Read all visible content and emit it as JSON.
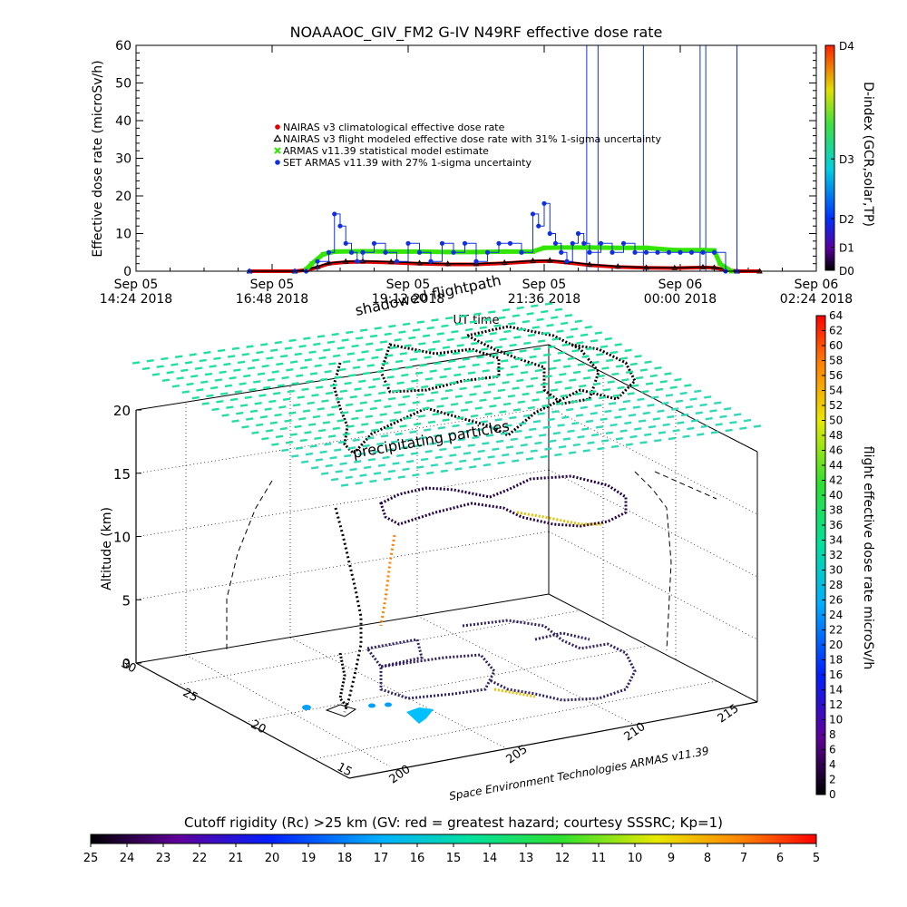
{
  "title": "NOAAAOC_GIV_FM2  G-IV    N49RF   effective dose rate",
  "colors": {
    "nairas_clim": "#e00000",
    "nairas_flight": "#000000",
    "armas_model": "#33e600",
    "set_armas": "#1030e0",
    "frame": "#000000",
    "particles": "#20e0b0"
  },
  "chart_data": [
    {
      "type": "line",
      "title": "NOAAAOC_GIV_FM2  G-IV    N49RF   effective dose rate",
      "xlabel": "UT time",
      "ylabel": "Effective dose rate (microSv/h)",
      "ylim": [
        0,
        60
      ],
      "yticks": [
        0,
        10,
        20,
        30,
        40,
        50,
        60
      ],
      "xlim": [
        0,
        12
      ],
      "xticks": [
        {
          "x": 0,
          "line1": "Sep 05",
          "line2": "14:24 2018"
        },
        {
          "x": 2.4,
          "line1": "Sep 05",
          "line2": "16:48 2018"
        },
        {
          "x": 4.8,
          "line1": "Sep 05",
          "line2": "19:12 2018"
        },
        {
          "x": 7.2,
          "line1": "Sep 05",
          "line2": "21:36 2018"
        },
        {
          "x": 9.6,
          "line1": "Sep 06",
          "line2": "00:00 2018"
        },
        {
          "x": 12.0,
          "line1": "Sep 06",
          "line2": "02:24 2018"
        }
      ],
      "legend": [
        {
          "symbol": "circle",
          "color": "#e00000",
          "label": "NAIRAS v3 climatological effective dose rate"
        },
        {
          "symbol": "triangle",
          "color": "#000000",
          "label": "NAIRAS v3 flight modeled effective dose rate with 31% 1-sigma uncertainty"
        },
        {
          "symbol": "x",
          "color": "#33e600",
          "label": "ARMAS v11.39 statistical model estimate"
        },
        {
          "symbol": "circle",
          "color": "#1030e0",
          "label": "SET ARMAS v11.39 with 27% 1-sigma uncertainty"
        }
      ],
      "legend_position": "upper-left",
      "series": [
        {
          "name": "NAIRAS v3 climatological effective dose rate",
          "x": [
            2.0,
            2.8,
            3.0,
            3.2,
            3.4,
            3.7,
            4.0,
            4.5,
            5.0,
            5.5,
            6.0,
            6.5,
            7.0,
            7.3,
            7.6,
            8.0,
            8.5,
            9.0,
            9.5,
            10.0,
            10.2,
            10.4,
            10.6,
            11.0
          ],
          "y": [
            0,
            0,
            0.3,
            1.0,
            2.0,
            2.4,
            2.5,
            2.3,
            2.0,
            1.8,
            1.8,
            2.1,
            2.6,
            2.7,
            2.3,
            1.6,
            1.1,
            0.9,
            0.8,
            1.0,
            0.9,
            0.4,
            0,
            0
          ]
        },
        {
          "name": "NAIRAS v3 flight modeled effective dose rate with 31% 1-sigma uncertainty",
          "x": [
            2.0,
            2.8,
            3.0,
            3.2,
            3.4,
            3.7,
            4.0,
            4.5,
            5.0,
            5.5,
            6.0,
            6.5,
            7.0,
            7.3,
            7.6,
            8.0,
            8.5,
            9.0,
            9.5,
            10.0,
            10.2,
            10.4,
            10.6,
            11.0
          ],
          "y": [
            0,
            0,
            0.4,
            1.2,
            2.2,
            2.6,
            2.7,
            2.5,
            2.2,
            2.0,
            2.0,
            2.3,
            2.8,
            2.9,
            2.5,
            1.8,
            1.3,
            1.0,
            0.9,
            1.1,
            1.0,
            0.5,
            0,
            0
          ]
        },
        {
          "name": "ARMAS v11.39 statistical model estimate",
          "x": [
            3.0,
            3.1,
            3.3,
            3.5,
            4.0,
            4.5,
            5.0,
            5.5,
            6.0,
            6.5,
            7.0,
            7.2,
            7.5,
            8.0,
            8.5,
            9.0,
            9.5,
            10.0,
            10.2,
            10.3,
            10.5
          ],
          "y": [
            0.5,
            2.0,
            4.5,
            5.2,
            5.3,
            5.2,
            5.2,
            5.1,
            5.1,
            5.2,
            5.2,
            6.2,
            6.3,
            6.3,
            6.2,
            6.2,
            5.6,
            5.6,
            5.5,
            2.0,
            0
          ]
        },
        {
          "name": "SET ARMAS v11.39 with 27% 1-sigma uncertainty",
          "x": [
            2.0,
            2.8,
            3.0,
            3.2,
            3.4,
            3.5,
            3.6,
            3.7,
            3.8,
            3.9,
            4.0,
            4.2,
            4.4,
            4.6,
            4.8,
            5.0,
            5.2,
            5.4,
            5.6,
            5.8,
            6.0,
            6.2,
            6.4,
            6.6,
            6.8,
            7.0,
            7.1,
            7.2,
            7.3,
            7.4,
            7.5,
            7.6,
            7.7,
            7.8,
            7.9,
            8.0,
            8.2,
            8.4,
            8.6,
            8.8,
            9.0,
            9.2,
            9.4,
            9.6,
            9.8,
            10.0,
            10.2,
            10.4,
            10.6
          ],
          "y": [
            0,
            0,
            0,
            2.6,
            5.0,
            15.2,
            12.0,
            7.4,
            5.0,
            2.6,
            5.0,
            7.4,
            5.0,
            2.6,
            7.4,
            5.0,
            2.6,
            7.4,
            5.0,
            7.4,
            2.6,
            5.0,
            7.4,
            7.4,
            5.0,
            15.2,
            12.0,
            18.0,
            10.0,
            7.4,
            5.0,
            2.6,
            7.4,
            10.0,
            7.4,
            5.0,
            7.4,
            5.0,
            7.4,
            5.0,
            5.0,
            5.0,
            5.0,
            5.0,
            5.0,
            5.0,
            5.0,
            0,
            0
          ]
        }
      ],
      "spikes_x": [
        7.95,
        8.15,
        8.95,
        9.95,
        10.05,
        10.6
      ]
    },
    {
      "type": "scatter",
      "title": "",
      "zlabel": "Altitude (km)",
      "zlim": [
        0,
        20
      ],
      "zticks": [
        0,
        5,
        10,
        15,
        20
      ],
      "xticks": [
        "15",
        "20",
        "25",
        "30"
      ],
      "yticks": [
        "200",
        "205",
        "210",
        "215"
      ],
      "annotations": [
        "shadowed flightpath",
        "precipitating particles"
      ],
      "credit": "Space Environment Technologies ARMAS v11.39"
    }
  ],
  "dindex_colorbar": {
    "title": "D-index (GCR,solar,TP)",
    "labels": [
      {
        "text": "D4",
        "frac": 1.0
      },
      {
        "text": "D3",
        "frac": 0.495
      },
      {
        "text": "D2",
        "frac": 0.23
      },
      {
        "text": "D1",
        "frac": 0.103
      },
      {
        "text": "D0",
        "frac": 0.0
      }
    ]
  },
  "dose_colorbar": {
    "title": "flight effective dose rate microSv/h",
    "min": 0,
    "max": 64,
    "ticks": [
      "0",
      "2",
      "4",
      "6",
      "8",
      "10",
      "12",
      "14",
      "16",
      "18",
      "20",
      "22",
      "24",
      "26",
      "28",
      "30",
      "32",
      "34",
      "36",
      "38",
      "40",
      "42",
      "44",
      "46",
      "48",
      "50",
      "52",
      "54",
      "56",
      "58",
      "60",
      "62",
      "64"
    ]
  },
  "rc_colorbar": {
    "title": "Cutoff rigidity (Rc) >25 km (GV: red = greatest hazard; courtesy SSSRC; Kp=1)",
    "ticks": [
      "25",
      "24",
      "23",
      "22",
      "21",
      "20",
      "19",
      "18",
      "17",
      "16",
      "15",
      "14",
      "13",
      "12",
      "11",
      "10",
      "9",
      "8",
      "7",
      "6",
      "5"
    ]
  }
}
